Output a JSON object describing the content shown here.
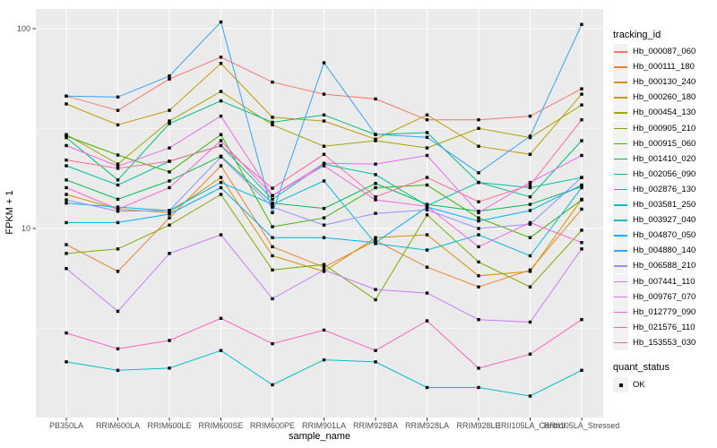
{
  "panel": {
    "background": "#EBEBEB",
    "gridline_color": "#FFFFFF",
    "tick_color": "#333333",
    "axis_text_color": "#4D4D4D",
    "point_color": "#000000"
  },
  "legend": {
    "tracking_title": "tracking_id",
    "quant_title": "quant_status",
    "quant_items": [
      "OK"
    ]
  },
  "chart_data": {
    "type": "line",
    "xlabel": "sample_name",
    "ylabel": "FPKM + 1",
    "y_scale": "log10",
    "y_tick_labels": [
      "100",
      "10"
    ],
    "y_tick_values": [
      100,
      10
    ],
    "y_minor_gridlines": [
      31.62,
      3.162
    ],
    "ylim": [
      1.13,
      125
    ],
    "grid": "on",
    "legend_position": "right",
    "legend_title": "tracking_id",
    "quant_status_legend": {
      "title": "quant_status",
      "items": [
        "OK"
      ],
      "marker": "filled-black-square"
    },
    "point_shape": "filled-black-square",
    "categories": [
      "PB350LA",
      "RRIM600LA",
      "RRIM600LE",
      "RRIM600SE",
      "RRIM600PE",
      "RRIM901LA",
      "RRIM928BA",
      "RRIM928LA",
      "RRIM928LE",
      "RRII105LA_Control",
      "RRII105LA_Stressed"
    ],
    "series": [
      {
        "name": "Hb_000087_060",
        "color": "#F8766D",
        "values": [
          46,
          39,
          56,
          72,
          54,
          47,
          44.5,
          35,
          35,
          36.5,
          50
        ]
      },
      {
        "name": "Hb_000111_180",
        "color": "#EA8331",
        "values": [
          8.3,
          6.1,
          11.3,
          20.6,
          8.1,
          6.4,
          8.7,
          6.4,
          5.1,
          6.2,
          12.5
        ]
      },
      {
        "name": "Hb_000130_240",
        "color": "#D89000",
        "values": [
          14.8,
          12.5,
          12,
          18,
          7.3,
          6.1,
          9,
          9.3,
          5.8,
          6.1,
          14
        ]
      },
      {
        "name": "Hb_000260_180",
        "color": "#C09B00",
        "values": [
          42,
          33,
          39,
          67,
          36,
          34.5,
          28,
          37,
          25.8,
          23.5,
          47
        ]
      },
      {
        "name": "Hb_000454_130",
        "color": "#A3A500",
        "values": [
          29.5,
          21,
          34.5,
          48.5,
          33,
          25.8,
          27.5,
          25.3,
          31.7,
          28.5,
          41.5
        ]
      },
      {
        "name": "Hb_000905_210",
        "color": "#7CAE00",
        "values": [
          7.5,
          7.9,
          10.4,
          14.8,
          6.2,
          6.6,
          4.4,
          11.7,
          6.8,
          5.1,
          9.8
        ]
      },
      {
        "name": "Hb_000915_060",
        "color": "#39B600",
        "values": [
          29,
          23.3,
          19.2,
          29.5,
          10.2,
          11.3,
          16,
          16.5,
          11.3,
          9,
          13.9
        ]
      },
      {
        "name": "Hb_001410_020",
        "color": "#00BB4E",
        "values": [
          17.5,
          14,
          17.3,
          23,
          13.4,
          12.6,
          16.8,
          13.2,
          12.2,
          13.2,
          16.2
        ]
      },
      {
        "name": "Hb_002056_090",
        "color": "#00BF7D",
        "values": [
          28.5,
          17.5,
          33.5,
          43.5,
          34,
          37,
          29.5,
          30.2,
          17,
          14.4,
          27.5
        ]
      },
      {
        "name": "Hb_002876_130",
        "color": "#00C1A3",
        "values": [
          20.6,
          16.5,
          21.7,
          26,
          14,
          21,
          18.6,
          13,
          17,
          16,
          18
        ]
      },
      {
        "name": "Hb_003581_250",
        "color": "#00BFC4",
        "values": [
          2.15,
          1.95,
          2.0,
          2.45,
          1.65,
          2.2,
          2.15,
          1.6,
          1.6,
          1.45,
          1.95
        ]
      },
      {
        "name": "Hb_003927_040",
        "color": "#00BAE0",
        "values": [
          13.4,
          12.8,
          12.3,
          17,
          13.2,
          17.3,
          8.4,
          7.8,
          9.3,
          7.3,
          16
        ]
      },
      {
        "name": "Hb_004870_050",
        "color": "#00B0F6",
        "values": [
          10.7,
          10.7,
          11.8,
          16,
          9,
          9,
          8.5,
          12.8,
          10.9,
          12.3,
          16.5
        ]
      },
      {
        "name": "Hb_004880_140",
        "color": "#35A2FF",
        "values": [
          46,
          45.5,
          58,
          108,
          12,
          67.5,
          29.6,
          28.6,
          19,
          29,
          105
        ]
      },
      {
        "name": "Hb_006588_210",
        "color": "#9590FF",
        "values": [
          13.9,
          12.2,
          12.3,
          22.8,
          12.8,
          10.4,
          11.9,
          12.4,
          10,
          10.5,
          18
        ]
      },
      {
        "name": "Hb_007441_110",
        "color": "#C77CFF",
        "values": [
          6.3,
          3.85,
          7.5,
          9.3,
          4.45,
          6.2,
          4.95,
          4.75,
          3.5,
          3.4,
          7.9
        ]
      },
      {
        "name": "Hb_009767_070",
        "color": "#E76BF3",
        "values": [
          26,
          20.5,
          25.3,
          36.5,
          14.6,
          21.2,
          21,
          23.2,
          12,
          17,
          23.2
        ]
      },
      {
        "name": "Hb_012779_090",
        "color": "#FA62DB",
        "values": [
          16,
          12.5,
          16,
          27.5,
          14.6,
          20.6,
          13.9,
          12.9,
          8.1,
          10.7,
          8.5
        ]
      },
      {
        "name": "Hb_021576_110",
        "color": "#FF62BC",
        "values": [
          3.0,
          2.5,
          2.75,
          3.55,
          2.65,
          3.1,
          2.45,
          3.45,
          2.0,
          2.35,
          3.5
        ]
      },
      {
        "name": "Hb_153553_030",
        "color": "#FF6A98",
        "values": [
          22,
          20,
          21.7,
          26,
          15.9,
          23.5,
          14.4,
          18,
          13.6,
          16.5,
          35
        ]
      }
    ]
  }
}
